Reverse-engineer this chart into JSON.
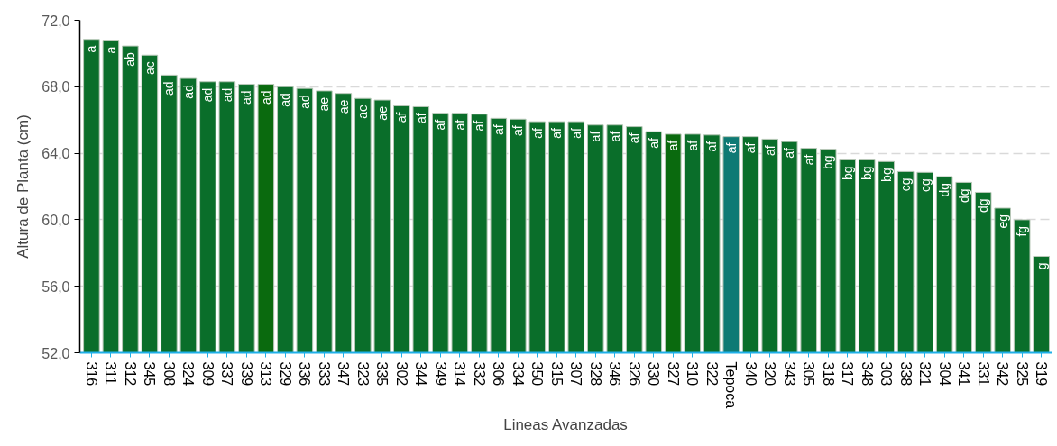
{
  "chart_data": {
    "type": "bar",
    "xlabel": "Lineas Avanzadas",
    "ylabel": "Altura de Planta (cm)",
    "categories": [
      "316",
      "311",
      "312",
      "345",
      "308",
      "324",
      "309",
      "337",
      "339",
      "313",
      "329",
      "336",
      "333",
      "347",
      "323",
      "335",
      "302",
      "344",
      "349",
      "314",
      "332",
      "306",
      "334",
      "350",
      "315",
      "307",
      "328",
      "346",
      "326",
      "330",
      "327",
      "310",
      "322",
      "Tepoca",
      "340",
      "320",
      "343",
      "305",
      "318",
      "317",
      "348",
      "303",
      "338",
      "321",
      "304",
      "341",
      "331",
      "342",
      "325",
      "319"
    ],
    "values": [
      70.85,
      70.8,
      70.45,
      69.9,
      68.7,
      68.5,
      68.3,
      68.3,
      68.15,
      68.15,
      68.0,
      67.9,
      67.75,
      67.6,
      67.3,
      67.2,
      66.85,
      66.8,
      66.4,
      66.4,
      66.35,
      66.1,
      66.05,
      65.9,
      65.9,
      65.9,
      65.7,
      65.7,
      65.6,
      65.3,
      65.15,
      65.15,
      65.1,
      65.0,
      65.0,
      64.85,
      64.7,
      64.3,
      64.25,
      63.6,
      63.6,
      63.5,
      62.9,
      62.85,
      62.6,
      62.25,
      61.65,
      60.7,
      60.0,
      57.8
    ],
    "colors": [
      "#0a6e2a",
      "#0a6e2a",
      "#0a6e2a",
      "#0a6e2a",
      "#0a6e2a",
      "#0a6e2a",
      "#0a6e2a",
      "#0a6e2a",
      "#0a6e2a",
      "#0a6a0e",
      "#0a6e2a",
      "#0a6e2a",
      "#0a6e2a",
      "#0a6e2a",
      "#0a6e2a",
      "#0a6e2a",
      "#0a6e2a",
      "#0a6e2a",
      "#0a6e2a",
      "#0a6e2a",
      "#0a6e2a",
      "#0a6e2a",
      "#0a6e2a",
      "#0a6e2a",
      "#0a6e2a",
      "#0a6e2a",
      "#0a6e2a",
      "#0a6e2a",
      "#0a6e2a",
      "#0a6e2a",
      "#0a6a0e",
      "#0a6e2a",
      "#0a6e2a",
      "#0e7a74",
      "#0a6e2a",
      "#0a6e2a",
      "#0a6e2a",
      "#0a6e2a",
      "#0a6e2a",
      "#0a6e2a",
      "#0a6e2a",
      "#0a6e2a",
      "#0a6e2a",
      "#0a6e2a",
      "#0a6e2a",
      "#0a6e2a",
      "#0a6e2a",
      "#0a6e2a",
      "#0a6e2a",
      "#0a6e2a"
    ],
    "value_labels": [
      "a",
      "a",
      "ab",
      "ac",
      "ad",
      "ad",
      "ad",
      "ad",
      "ad",
      "ad",
      "ad",
      "ad",
      "ae",
      "ae",
      "ae",
      "ae",
      "af",
      "af",
      "af",
      "af",
      "af",
      "af",
      "af",
      "af",
      "af",
      "af",
      "af",
      "af",
      "af",
      "af",
      "af",
      "af",
      "af",
      "af",
      "af",
      "af",
      "af",
      "af",
      "bg",
      "bg",
      "bg",
      "bg",
      "cg",
      "cg",
      "dg",
      "dg",
      "dg",
      "eg",
      "fg",
      "g"
    ],
    "ylim": [
      52,
      72
    ],
    "yticks": [
      {
        "value": 52,
        "label": "52,0"
      },
      {
        "value": 56,
        "label": "56,0"
      },
      {
        "value": 60,
        "label": "60,0"
      },
      {
        "value": 64,
        "label": "64,0"
      },
      {
        "value": 68,
        "label": "68,0"
      },
      {
        "value": 72,
        "label": "72,0"
      }
    ],
    "grid": "y"
  }
}
